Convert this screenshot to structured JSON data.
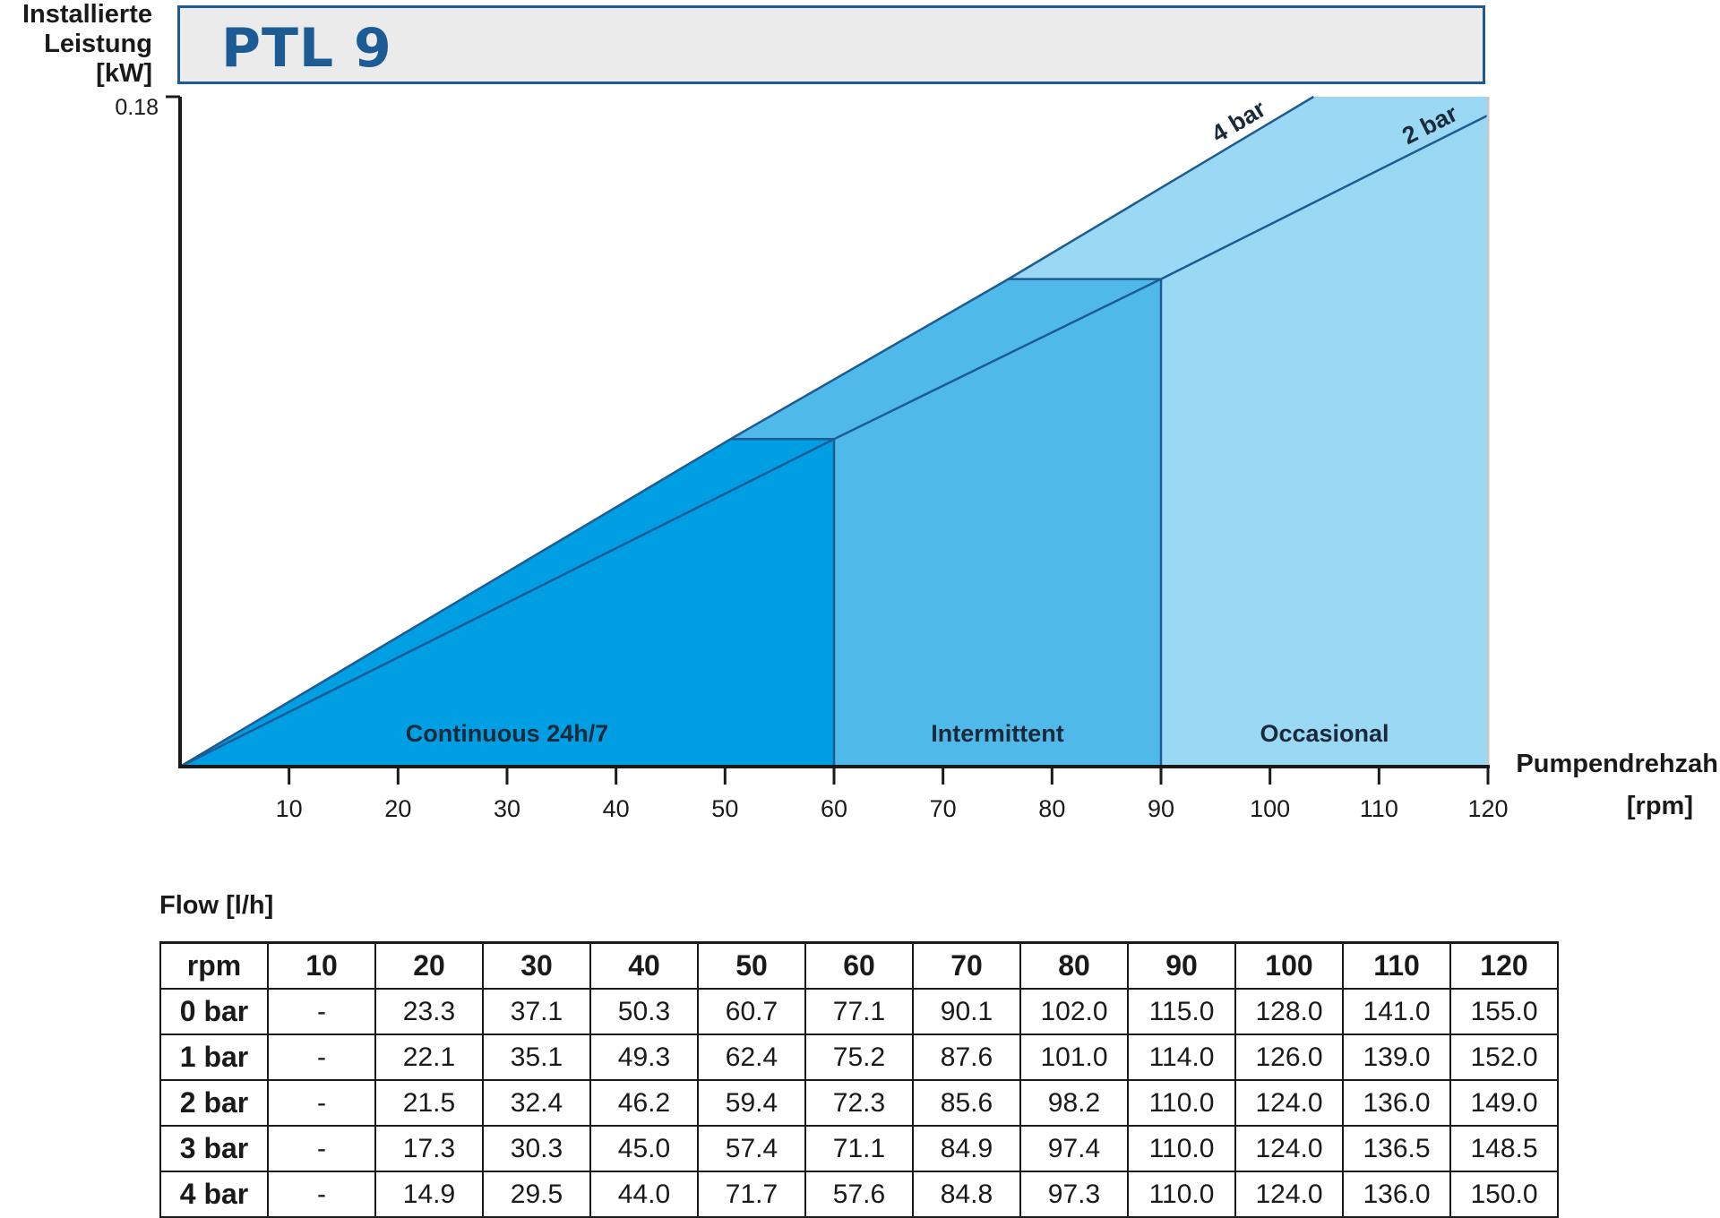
{
  "title": "PTL 9",
  "y_axis_label": [
    "Installierte",
    "Leistung",
    "[kW]"
  ],
  "x_axis_label": [
    "Pumpendrehzah",
    "[rpm]"
  ],
  "colors": {
    "accent": "#1c5b93",
    "continuous": "#009fe3",
    "intermittent": "#4fb9ea",
    "occasional": "#9ad8f3",
    "line": "#1c5b93",
    "title_bg": "#ebebeb"
  },
  "chart_data": {
    "type": "area",
    "title": "PTL 9",
    "xlabel": "Pumpendrehzah [rpm]",
    "ylabel": "Installierte Leistung [kW]",
    "xlim": [
      0,
      120
    ],
    "ylim": [
      0,
      0.18
    ],
    "x_ticks": [
      10,
      20,
      30,
      40,
      50,
      60,
      70,
      80,
      90,
      100,
      110,
      120
    ],
    "y_ticks": [
      0.18
    ],
    "series": [
      {
        "name": "4 bar",
        "x": [
          0,
          50.5,
          76,
          104
        ],
        "y": [
          0,
          0.088,
          0.131,
          0.18
        ]
      },
      {
        "name": "2 bar",
        "x": [
          0,
          60,
          90,
          120
        ],
        "y": [
          0,
          0.088,
          0.131,
          0.175
        ]
      }
    ],
    "zones": [
      {
        "name": "Continuous 24h/7",
        "x_range": [
          0,
          60
        ]
      },
      {
        "name": "Intermittent",
        "x_range": [
          60,
          90
        ]
      },
      {
        "name": "Occasional",
        "x_range": [
          90,
          120
        ]
      }
    ],
    "grid": false,
    "legend": "inline"
  },
  "table": {
    "caption": "Flow [l/h]",
    "headers": [
      "rpm",
      "10",
      "20",
      "30",
      "40",
      "50",
      "60",
      "70",
      "80",
      "90",
      "100",
      "110",
      "120"
    ],
    "rows": [
      [
        "0 bar",
        "-",
        "23.3",
        "37.1",
        "50.3",
        "60.7",
        "77.1",
        "90.1",
        "102.0",
        "115.0",
        "128.0",
        "141.0",
        "155.0"
      ],
      [
        "1 bar",
        "-",
        "22.1",
        "35.1",
        "49.3",
        "62.4",
        "75.2",
        "87.6",
        "101.0",
        "114.0",
        "126.0",
        "139.0",
        "152.0"
      ],
      [
        "2 bar",
        "-",
        "21.5",
        "32.4",
        "46.2",
        "59.4",
        "72.3",
        "85.6",
        "98.2",
        "110.0",
        "124.0",
        "136.0",
        "149.0"
      ],
      [
        "3 bar",
        "-",
        "17.3",
        "30.3",
        "45.0",
        "57.4",
        "71.1",
        "84.9",
        "97.4",
        "110.0",
        "124.0",
        "136.5",
        "148.5"
      ],
      [
        "4 bar",
        "-",
        "14.9",
        "29.5",
        "44.0",
        "71.7",
        "57.6",
        "84.8",
        "97.3",
        "110.0",
        "124.0",
        "136.0",
        "150.0"
      ]
    ]
  }
}
